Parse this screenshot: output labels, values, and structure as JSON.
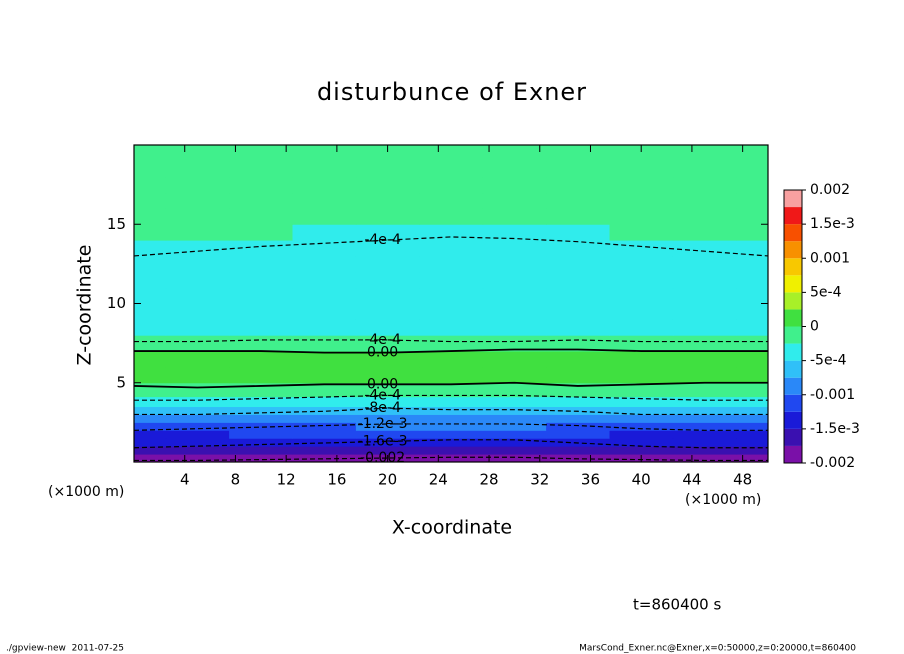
{
  "chart_data": {
    "type": "contour",
    "title": "disturbunce of Exner",
    "xlabel": "X-coordinate",
    "ylabel": "Z-coordinate",
    "x_unit": "(×1000 m)",
    "xlim": [
      0,
      50
    ],
    "xticks": [
      4,
      8,
      12,
      16,
      20,
      24,
      28,
      32,
      36,
      40,
      44,
      48
    ],
    "ylim": [
      0,
      20
    ],
    "yticks": [
      5,
      10,
      15
    ],
    "x": [
      0,
      5,
      10,
      15,
      20,
      25,
      30,
      35,
      40,
      45,
      50
    ],
    "z": [
      0.25,
      0.75,
      1.25,
      1.75,
      2.25,
      2.75,
      3.25,
      3.75,
      4.5,
      5.5,
      6.5,
      7.5,
      8.5,
      9.5,
      10.5,
      11.5,
      12.5,
      13.5,
      14.5,
      15.5,
      16.5,
      17.5,
      18.5,
      19.5
    ],
    "values": [
      [
        -0.00195,
        -0.00195,
        -0.0019,
        -0.0019,
        -0.0019,
        -0.00185,
        -0.0018,
        -0.0019,
        -0.0019,
        -0.00195,
        -0.00195
      ],
      [
        -0.0017,
        -0.0017,
        -0.00165,
        -0.00165,
        -0.0016,
        -0.0016,
        -0.0016,
        -0.00165,
        -0.0017,
        -0.0017,
        -0.0017
      ],
      [
        -0.00148,
        -0.00145,
        -0.0014,
        -0.0014,
        -0.0014,
        -0.00138,
        -0.00138,
        -0.0014,
        -0.00145,
        -0.00148,
        -0.00148
      ],
      [
        -0.0013,
        -0.00128,
        -0.00125,
        -0.00125,
        -0.0012,
        -0.0012,
        -0.0012,
        -0.00125,
        -0.0013,
        -0.0013,
        -0.0013
      ],
      [
        -0.0011,
        -0.0011,
        -0.00105,
        -0.00105,
        -0.001,
        -0.001,
        -0.001,
        -0.00105,
        -0.0011,
        -0.0011,
        -0.0011
      ],
      [
        -0.0009,
        -0.0009,
        -0.00088,
        -0.00085,
        -0.0008,
        -0.00082,
        -0.00082,
        -0.00085,
        -0.0009,
        -0.0009,
        -0.0009
      ],
      [
        -0.0007,
        -0.0007,
        -0.00068,
        -0.00065,
        -0.0006,
        -0.00062,
        -0.00062,
        -0.00065,
        -0.0007,
        -0.0007,
        -0.0007
      ],
      [
        -0.0005,
        -0.0005,
        -0.00048,
        -0.00045,
        -0.0004,
        -0.00042,
        -0.00042,
        -0.00045,
        -0.0005,
        -0.0005,
        -0.0005
      ],
      [
        -0.0002,
        -0.0002,
        -0.00018,
        -0.00015,
        -0.00012,
        -0.00015,
        -0.00015,
        -0.00018,
        -0.0002,
        -0.0002,
        -0.0002
      ],
      [
        0.0001,
        0.00012,
        0.0001,
        0.00015,
        0.00015,
        0.0001,
        0.0001,
        0.00012,
        0.0001,
        0.0001,
        0.0001
      ],
      [
        0.00012,
        0.00015,
        0.0002,
        0.00018,
        0.00022,
        0.0002,
        0.00015,
        0.00015,
        0.0002,
        0.00015,
        0.00012
      ],
      [
        -0.00015,
        -0.00015,
        -0.0001,
        -0.0001,
        -0.0001,
        -0.0001,
        -0.0001,
        -0.0001,
        -0.00012,
        -0.00015,
        -0.00015
      ],
      [
        -0.0003,
        -0.0003,
        -0.00028,
        -0.00028,
        -0.0003,
        -0.0003,
        -0.00028,
        -0.0003,
        -0.0003,
        -0.0003,
        -0.0003
      ],
      [
        -0.0004,
        -0.00042,
        -0.0004,
        -0.0004,
        -0.00042,
        -0.0004,
        -0.0004,
        -0.00042,
        -0.0004,
        -0.0004,
        -0.0004
      ],
      [
        -0.00042,
        -0.00042,
        -0.0004,
        -0.0004,
        -0.00045,
        -0.00042,
        -0.0004,
        -0.0004,
        -0.0004,
        -0.00042,
        -0.00042
      ],
      [
        -0.00038,
        -0.00038,
        -0.00035,
        -0.00035,
        -0.00038,
        -0.0004,
        -0.00038,
        -0.00035,
        -0.00035,
        -0.00038,
        -0.00038
      ],
      [
        -0.00032,
        -0.00032,
        -0.0003,
        -0.0003,
        -0.00032,
        -0.00035,
        -0.00032,
        -0.0003,
        -0.0003,
        -0.00032,
        -0.00032
      ],
      [
        -0.00028,
        -0.00028,
        -0.0003,
        -0.00032,
        -0.00035,
        -0.00035,
        -0.00035,
        -0.00032,
        -0.0003,
        -0.00028,
        -0.00028
      ],
      [
        -0.0002,
        -0.00022,
        -0.00025,
        -0.00028,
        -0.0003,
        -0.0003,
        -0.0003,
        -0.00028,
        -0.00025,
        -0.00022,
        -0.0002
      ],
      [
        -0.00015,
        -0.00015,
        -0.00018,
        -0.0002,
        -0.0002,
        -0.0002,
        -0.0002,
        -0.0002,
        -0.00018,
        -0.00015,
        -0.00015
      ],
      [
        -0.00012,
        -0.00012,
        -0.00015,
        -0.00015,
        -0.00015,
        -0.00015,
        -0.00015,
        -0.00015,
        -0.00012,
        -0.00012,
        -0.00012
      ],
      [
        -0.0001,
        -0.0001,
        -0.00012,
        -0.0001,
        -0.0001,
        -0.00012,
        -0.00012,
        -0.0001,
        -0.0001,
        -0.0001,
        -0.0001
      ],
      [
        -0.0002,
        -0.00015,
        -0.0001,
        -0.0001,
        -0.0001,
        -0.0001,
        -0.0001,
        -0.0001,
        -0.0001,
        -0.00015,
        -0.0002
      ],
      [
        -0.00015,
        -0.00012,
        -0.00015,
        -0.00012,
        -0.00012,
        -0.00015,
        -0.00015,
        -0.00012,
        -0.00012,
        -0.00015,
        -0.00015
      ]
    ],
    "contours": [
      {
        "value": -0.0004,
        "label": "-4e-4",
        "z": [
          13,
          13.3,
          13.6,
          13.8,
          14.0,
          14.2,
          14.1,
          13.9,
          13.6,
          13.3,
          13.0
        ]
      },
      {
        "value": -0.0004,
        "label": "-4e-4",
        "z": [
          7.6,
          7.6,
          7.7,
          7.7,
          7.7,
          7.6,
          7.6,
          7.7,
          7.6,
          7.6,
          7.6
        ]
      },
      {
        "value": 0,
        "label": "0.00",
        "z": [
          7.0,
          7.0,
          7.0,
          6.9,
          6.9,
          7.0,
          7.1,
          7.1,
          7.0,
          7.0,
          7.0
        ]
      },
      {
        "value": 0,
        "label": "0.00",
        "z": [
          4.8,
          4.7,
          4.8,
          4.9,
          4.9,
          4.9,
          5.0,
          4.8,
          4.9,
          5.0,
          5.0
        ]
      },
      {
        "value": -0.0004,
        "label": "-4e-4",
        "z": [
          3.9,
          3.9,
          4.0,
          4.1,
          4.2,
          4.2,
          4.2,
          4.1,
          4.0,
          3.9,
          3.9
        ]
      },
      {
        "value": -0.0008,
        "label": "-8e-4",
        "z": [
          3.0,
          3.0,
          3.1,
          3.2,
          3.4,
          3.3,
          3.3,
          3.2,
          3.0,
          3.0,
          3.0
        ]
      },
      {
        "value": -0.0012,
        "label": "-1.2e-3",
        "z": [
          2.0,
          2.1,
          2.2,
          2.3,
          2.4,
          2.4,
          2.4,
          2.3,
          2.1,
          2.0,
          2.0
        ]
      },
      {
        "value": -0.0016,
        "label": "-1.6e-3",
        "z": [
          0.9,
          1.0,
          1.1,
          1.2,
          1.3,
          1.4,
          1.4,
          1.2,
          1.0,
          0.9,
          0.9
        ]
      },
      {
        "value": -0.002,
        "label": "-0.002",
        "z": [
          0.1,
          0.1,
          0.15,
          0.2,
          0.25,
          0.3,
          0.3,
          0.2,
          0.15,
          0.1,
          0.1
        ]
      }
    ],
    "colorbar": {
      "levels": [
        -0.002,
        -0.00175,
        -0.0015,
        -0.00125,
        -0.001,
        -0.00075,
        -0.0005,
        -0.00025,
        0,
        0.00025,
        0.0005,
        0.00075,
        0.001,
        0.00125,
        0.0015,
        0.00175,
        0.002
      ],
      "colors": [
        "#7a10a8",
        "#3a10b0",
        "#1a1ad8",
        "#2048f0",
        "#2a88f8",
        "#30c0f8",
        "#30ecec",
        "#40f08c",
        "#40e040",
        "#a8f028",
        "#f0f000",
        "#f8c800",
        "#f89000",
        "#f85000",
        "#f01818",
        "#f8a0a0"
      ],
      "ticks": [
        -0.002,
        {
          "value": -0.0015,
          "label": "-1.5e-3"
        },
        -0.001,
        {
          "value": -0.0005,
          "label": "-5e-4"
        },
        0,
        {
          "value": 0.0005,
          "label": "5e-4"
        },
        0.001,
        {
          "value": 0.0015,
          "label": "1.5e-3"
        },
        0.002
      ]
    },
    "time_label": "t=860400 s",
    "footer_left": "./gpview-new  2011-07-25",
    "footer_right": "MarsCond_Exner.nc@Exner,x=0:50000,z=0:20000,t=860400"
  }
}
